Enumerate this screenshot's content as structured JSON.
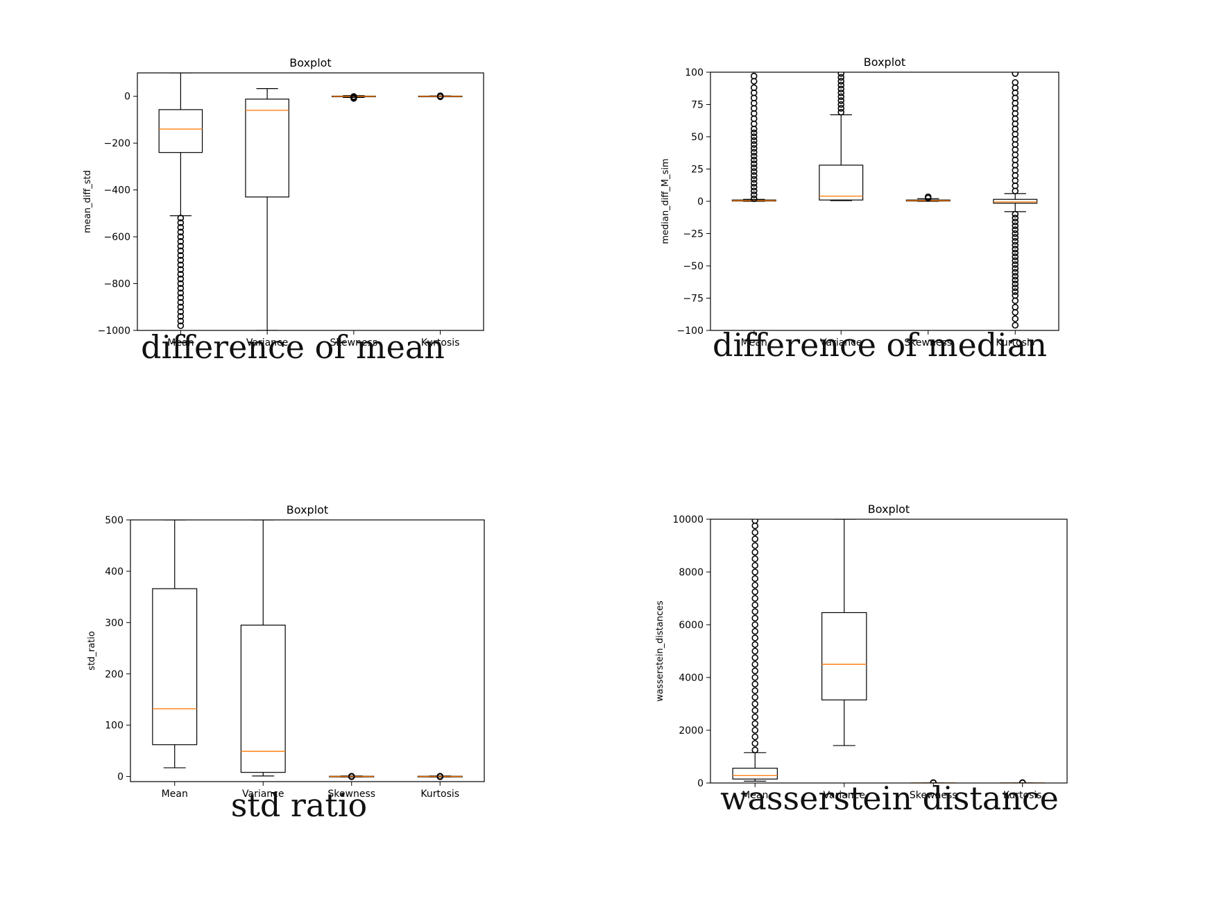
{
  "chart_data": [
    {
      "type": "boxplot",
      "title": "Boxplot",
      "ylabel": "mean_diff_std",
      "caption": "difference of mean",
      "categories": [
        "Mean",
        "Variance",
        "Skewness",
        "Kurtosis"
      ],
      "ylim": [
        -1000,
        100
      ],
      "yticks": [
        0,
        -200,
        -400,
        -600,
        -800,
        -1000
      ],
      "ytick_labels": [
        "0",
        "−200",
        "−400",
        "−600",
        "−800",
        "−1000"
      ],
      "boxes": [
        {
          "whislo": -510,
          "q1": -240,
          "med": -140,
          "q3": -57,
          "whishi": 100,
          "fliers": [
            -520,
            -540,
            -560,
            -580,
            -600,
            -620,
            -640,
            -660,
            -680,
            -700,
            -720,
            -740,
            -760,
            -780,
            -800,
            -820,
            -840,
            -860,
            -880,
            -900,
            -920,
            -940,
            -960,
            -980
          ]
        },
        {
          "whislo": -1000,
          "q1": -430,
          "med": -60,
          "q3": -12,
          "whishi": 33,
          "fliers": []
        },
        {
          "whislo": -5,
          "q1": -1,
          "med": 0,
          "q3": 1,
          "whishi": 3,
          "fliers": [
            -1,
            -5,
            -9
          ]
        },
        {
          "whislo": -2,
          "q1": -1,
          "med": 0,
          "q3": 1,
          "whishi": 2,
          "fliers": [
            -2,
            0,
            2
          ]
        }
      ]
    },
    {
      "type": "boxplot",
      "title": "Boxplot",
      "ylabel": "median_diff_M_sim",
      "caption": "difference of median",
      "categories": [
        "Mean",
        "Variance",
        "Skewness",
        "Kurtosis"
      ],
      "ylim": [
        -100,
        100
      ],
      "yticks": [
        100,
        75,
        50,
        25,
        0,
        -25,
        -50,
        -75,
        -100
      ],
      "ytick_labels": [
        "100",
        "75",
        "50",
        "25",
        "0",
        "−25",
        "−50",
        "−75",
        "−100"
      ],
      "boxes": [
        {
          "whislo": 0,
          "q1": 0.2,
          "med": 0.5,
          "q3": 1,
          "whishi": 1.5,
          "fliers": [
            2,
            5,
            8,
            11,
            14,
            17,
            20,
            23,
            26,
            29,
            32,
            35,
            38,
            41,
            44,
            47,
            50,
            53,
            56,
            60,
            64,
            68,
            72,
            76,
            80,
            84,
            88,
            93,
            97
          ]
        },
        {
          "whislo": 0.5,
          "q1": 1,
          "med": 4,
          "q3": 28,
          "whishi": 67,
          "fliers": [
            69,
            72,
            75,
            78,
            81,
            84,
            87,
            90,
            93,
            96,
            99
          ]
        },
        {
          "whislo": 0,
          "q1": 0.2,
          "med": 0.5,
          "q3": 1,
          "whishi": 2,
          "fliers": [
            2.5,
            3.5
          ]
        },
        {
          "whislo": -8,
          "q1": -1.5,
          "med": -0.5,
          "q3": 1.5,
          "whishi": 6,
          "fliers": [
            8,
            12,
            16,
            20,
            24,
            28,
            32,
            36,
            40,
            44,
            48,
            52,
            56,
            60,
            64,
            68,
            72,
            76,
            80,
            84,
            88,
            92,
            99,
            -10,
            -13,
            -16,
            -19,
            -22,
            -25,
            -28,
            -31,
            -34,
            -37,
            -40,
            -43,
            -46,
            -49,
            -52,
            -55,
            -58,
            -61,
            -64,
            -67,
            -70,
            -73,
            -77,
            -82,
            -86,
            -91,
            -96
          ]
        }
      ]
    },
    {
      "type": "boxplot",
      "title": "Boxplot",
      "ylabel": "std_ratio",
      "caption": "std ratio",
      "categories": [
        "Mean",
        "Variance",
        "Skewness",
        "Kurtosis"
      ],
      "ylim": [
        -10,
        500
      ],
      "yticks": [
        500,
        400,
        300,
        200,
        100,
        0
      ],
      "ytick_labels": [
        "500",
        "400",
        "300",
        "200",
        "100",
        "0"
      ],
      "boxes": [
        {
          "whislo": 17,
          "q1": 62,
          "med": 132,
          "q3": 366,
          "whishi": 500,
          "fliers": []
        },
        {
          "whislo": 1,
          "q1": 8,
          "med": 49,
          "q3": 295,
          "whishi": 500,
          "fliers": []
        },
        {
          "whislo": -1,
          "q1": -0.5,
          "med": 0,
          "q3": 0.5,
          "whishi": 1,
          "fliers": [
            -0.5,
            0.5
          ]
        },
        {
          "whislo": -1,
          "q1": -0.5,
          "med": 0,
          "q3": 0.5,
          "whishi": 1,
          "fliers": [
            -0.5,
            0.5
          ]
        }
      ]
    },
    {
      "type": "boxplot",
      "title": "Boxplot",
      "ylabel": "wasserstein_distances",
      "caption": "wasserstein distance",
      "categories": [
        "Mean",
        "Variance",
        "Skewness",
        "Kurtosis"
      ],
      "ylim": [
        0,
        10000
      ],
      "yticks": [
        10000,
        8000,
        6000,
        4000,
        2000,
        0
      ],
      "ytick_labels": [
        "10000",
        "8000",
        "6000",
        "4000",
        "2000",
        "0"
      ],
      "boxes": [
        {
          "whislo": 70,
          "q1": 150,
          "med": 280,
          "q3": 560,
          "whishi": 1150,
          "fliers": [
            1250,
            1500,
            1750,
            2000,
            2250,
            2500,
            2750,
            3000,
            3250,
            3500,
            3750,
            4000,
            4250,
            4500,
            4750,
            5000,
            5250,
            5500,
            5750,
            6000,
            6250,
            6500,
            6750,
            7000,
            7250,
            7500,
            7750,
            8000,
            8250,
            8500,
            8750,
            9000,
            9250,
            9500,
            9750,
            9950
          ]
        },
        {
          "whislo": 1420,
          "q1": 3150,
          "med": 4500,
          "q3": 6460,
          "whishi": 10000,
          "fliers": []
        },
        {
          "whislo": 0,
          "q1": 0,
          "med": 0,
          "q3": 0,
          "whishi": 0,
          "fliers": [
            5,
            15
          ]
        },
        {
          "whislo": 0,
          "q1": 0,
          "med": 0,
          "q3": 0,
          "whishi": 0,
          "fliers": [
            5,
            15
          ]
        }
      ]
    }
  ]
}
